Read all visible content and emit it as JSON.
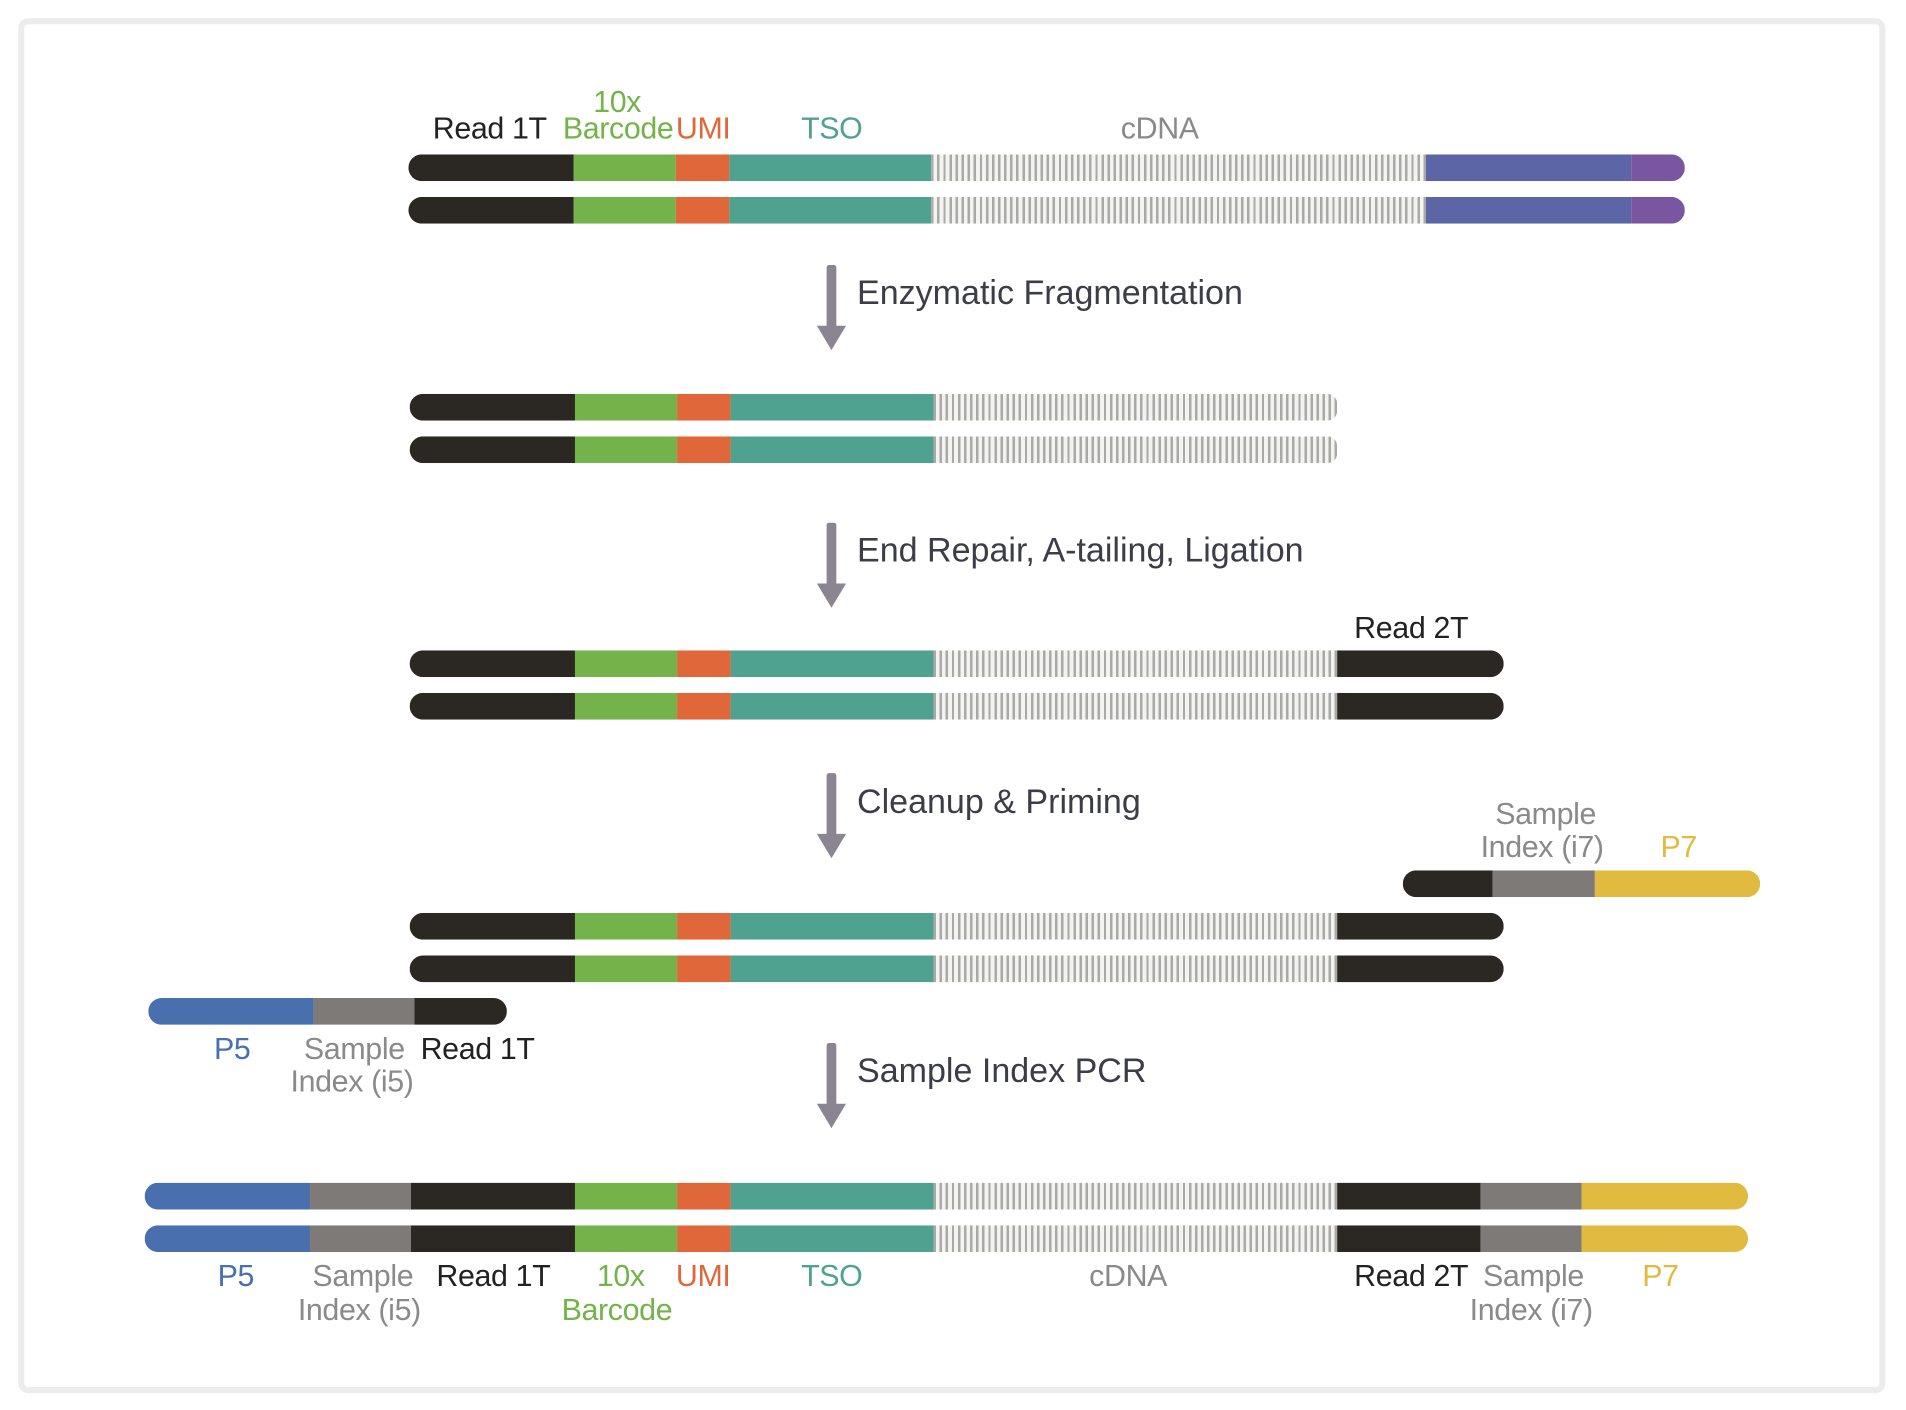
{
  "colors": {
    "read": "#2b2824",
    "barcode": "#74b34a",
    "umi": "#e0673a",
    "tso": "#4fa190",
    "cdna": "#a9a9a6",
    "blue_cap": "#5c66a6",
    "purple_cap": "#7b56a0",
    "p5": "#4a6fae",
    "sample_index": "#7d7a77",
    "p7": "#e0bb3f",
    "label_gray": "#8a8a8a"
  },
  "top": {
    "read1t": "Read 1T",
    "tenx": "10x",
    "barcode": "Barcode",
    "umi": "UMI",
    "tso": "TSO",
    "cdna": "cDNA"
  },
  "steps": [
    "Enzymatic Fragmentation",
    "End Repair, A-tailing, Ligation",
    "Cleanup & Priming",
    "Sample Index PCR"
  ],
  "ligation": {
    "read2t": "Read 2T"
  },
  "priming": {
    "p7_adapter": {
      "sample": "Sample",
      "index": "Index (i7)",
      "p7": "P7"
    },
    "p5_adapter": {
      "p5": "P5",
      "sample": "Sample",
      "index": "Index (i5)",
      "read1t": "Read 1T"
    }
  },
  "final": {
    "p5": "P5",
    "sample_i5": "Sample",
    "index_i5": "Index (i5)",
    "read1t": "Read 1T",
    "tenx": "10x",
    "barcode": "Barcode",
    "umi": "UMI",
    "tso": "TSO",
    "cdna": "cDNA",
    "read2t": "Read 2T",
    "sample_i7": "Sample",
    "index_i7": "Index (i7)",
    "p7": "P7"
  }
}
